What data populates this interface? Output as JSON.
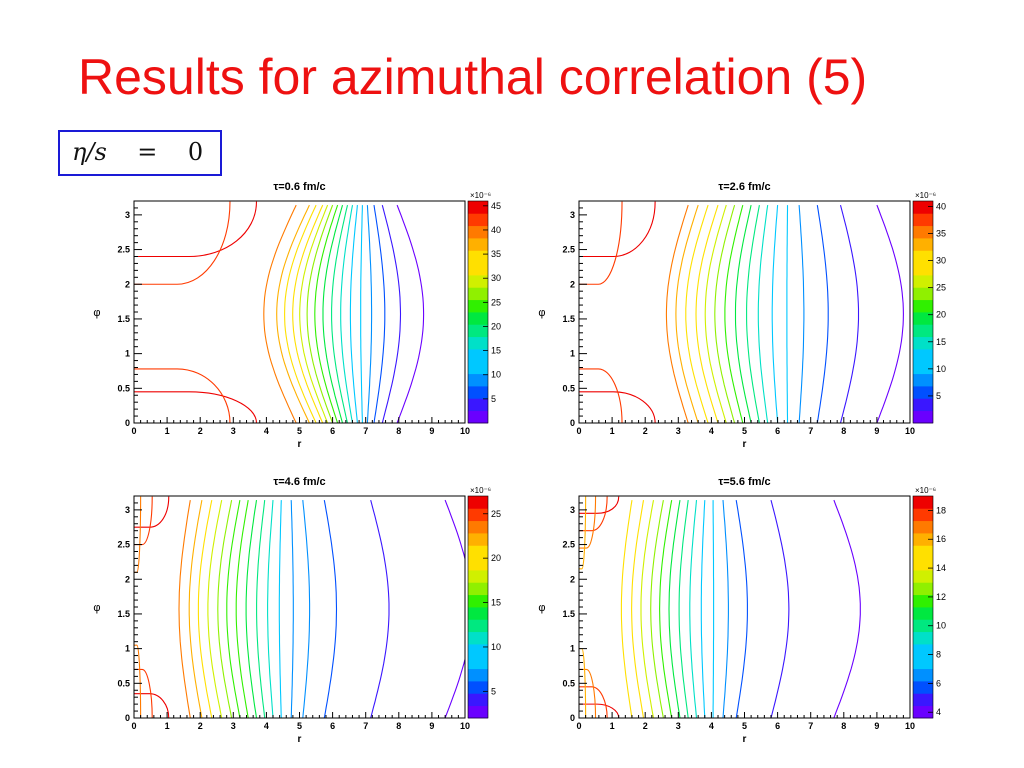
{
  "slide": {
    "title": "Results for azimuthal correlation (5)",
    "equation": {
      "lhs": "η/s",
      "op": "=",
      "rhs": "0"
    }
  },
  "chart_data": [
    {
      "type": "contour",
      "title": "τ=0.6 fm/c",
      "xlabel": "r",
      "ylabel": "φ",
      "xlim": [
        0,
        10
      ],
      "ylim": [
        0,
        3.2
      ],
      "xticks": [
        "0",
        "1",
        "2",
        "3",
        "4",
        "5",
        "6",
        "7",
        "8",
        "9",
        "10"
      ],
      "yticks": [
        "0",
        "0.5",
        "1",
        "1.5",
        "2",
        "2.5",
        "3"
      ],
      "colorbar": {
        "multiplier": "×10⁻⁶",
        "range": [
          0,
          46
        ],
        "ticks": [
          "5",
          "10",
          "15",
          "20",
          "25",
          "30",
          "35",
          "40",
          "45"
        ]
      },
      "contour_r_at_phi0": [
        4.9,
        5.3,
        5.5,
        5.7,
        5.85,
        6.0,
        6.15,
        6.3,
        6.45,
        6.6,
        6.75,
        6.9,
        7.05,
        7.25,
        7.5,
        7.95
      ],
      "hyperbola_levels": [
        {
          "r_at_phi0": 3.7,
          "lobe_phi": [
            0.45,
            2.4
          ]
        },
        {
          "r_at_phi0": 2.9,
          "lobe_phi": [
            0.78,
            2.0
          ]
        }
      ]
    },
    {
      "type": "contour",
      "title": "τ=2.6 fm/c",
      "xlabel": "r",
      "ylabel": "φ",
      "xlim": [
        0,
        10
      ],
      "ylim": [
        0,
        3.2
      ],
      "xticks": [
        "0",
        "1",
        "2",
        "3",
        "4",
        "5",
        "6",
        "7",
        "8",
        "9",
        "10"
      ],
      "yticks": [
        "0",
        "0.5",
        "1",
        "1.5",
        "2",
        "2.5",
        "3"
      ],
      "colorbar": {
        "multiplier": "×10⁻⁶",
        "range": [
          0,
          41
        ],
        "ticks": [
          "5",
          "10",
          "15",
          "20",
          "25",
          "30",
          "35",
          "40"
        ]
      },
      "contour_r_at_phi0": [
        3.3,
        3.6,
        3.9,
        4.2,
        4.45,
        4.7,
        4.95,
        5.2,
        5.45,
        5.7,
        6.0,
        6.3,
        6.65,
        7.2,
        7.9,
        9.0
      ],
      "hyperbola_levels": [
        {
          "r_at_phi0": 2.3,
          "lobe_phi": [
            0.45,
            2.4
          ]
        },
        {
          "r_at_phi0": 1.3,
          "lobe_phi": [
            0.78,
            2.0
          ]
        }
      ]
    },
    {
      "type": "contour",
      "title": "τ=4.6 fm/c",
      "xlabel": "r",
      "ylabel": "φ",
      "xlim": [
        0,
        10
      ],
      "ylim": [
        0,
        3.2
      ],
      "xticks": [
        "0",
        "1",
        "2",
        "3",
        "4",
        "5",
        "6",
        "7",
        "8",
        "9",
        "10"
      ],
      "yticks": [
        "0",
        "0.5",
        "1",
        "1.5",
        "2",
        "2.5",
        "3"
      ],
      "colorbar": {
        "multiplier": "×10⁻⁶",
        "range": [
          2,
          27
        ],
        "ticks": [
          "5",
          "10",
          "15",
          "20",
          "25"
        ]
      },
      "contour_r_at_phi0": [
        1.7,
        2.05,
        2.35,
        2.65,
        2.95,
        3.2,
        3.45,
        3.7,
        3.95,
        4.2,
        4.45,
        4.75,
        5.1,
        5.75,
        7.15,
        9.4
      ],
      "hyperbola_levels": [
        {
          "r_at_phi0": 1.05,
          "lobe_phi": [
            0.35,
            2.75
          ]
        },
        {
          "r_at_phi0": 0.55,
          "lobe_phi": [
            0.7,
            2.5
          ]
        },
        {
          "r_at_phi0": 0.2,
          "lobe_phi": [
            1.05,
            2.1
          ]
        }
      ]
    },
    {
      "type": "contour",
      "title": "τ=5.6 fm/c",
      "xlabel": "r",
      "ylabel": "φ",
      "xlim": [
        0,
        10
      ],
      "ylim": [
        0,
        3.2
      ],
      "xticks": [
        "0",
        "1",
        "2",
        "3",
        "4",
        "5",
        "6",
        "7",
        "8",
        "9",
        "10"
      ],
      "yticks": [
        "0",
        "0.5",
        "1",
        "1.5",
        "2",
        "2.5",
        "3"
      ],
      "colorbar": {
        "multiplier": "×10⁻⁶",
        "range": [
          3.6,
          19
        ],
        "ticks": [
          "4",
          "6",
          "8",
          "10",
          "12",
          "14",
          "16",
          "18"
        ]
      },
      "contour_r_at_phi0": [
        1.6,
        1.95,
        2.25,
        2.55,
        2.8,
        3.05,
        3.3,
        3.55,
        3.8,
        4.05,
        4.35,
        4.75,
        5.8,
        7.7
      ],
      "hyperbola_levels": [
        {
          "r_at_phi0": 1.2,
          "lobe_phi": [
            0.2,
            2.95
          ]
        },
        {
          "r_at_phi0": 0.85,
          "lobe_phi": [
            0.45,
            2.7
          ]
        },
        {
          "r_at_phi0": 0.5,
          "lobe_phi": [
            0.7,
            2.45
          ]
        },
        {
          "r_at_phi0": 0.2,
          "lobe_phi": [
            1.0,
            2.15
          ]
        }
      ]
    }
  ]
}
